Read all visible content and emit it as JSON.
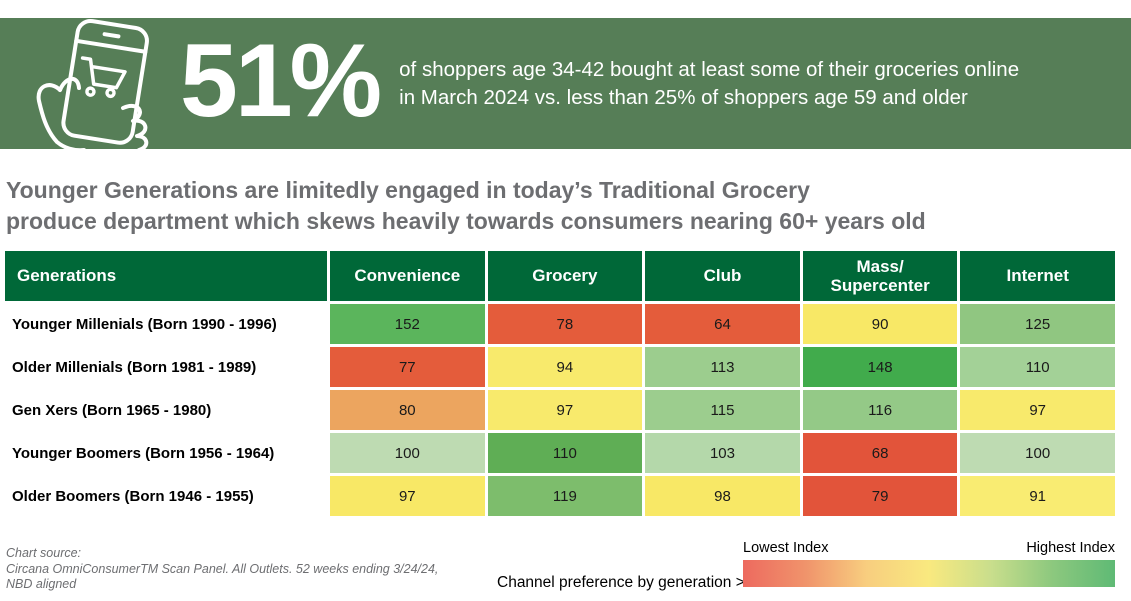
{
  "banner": {
    "bg_color": "#567e57",
    "stat_value": "51%",
    "description_line1": "of shoppers age 34-42 bought at least some of their groceries online",
    "description_line2": "in March 2024 vs. less than 25% of shoppers age 59 and older",
    "icon": "hand-holding-phone-shopping-cart-icon"
  },
  "headline": {
    "text": "Younger Generations are limitedly engaged in today’s Traditional Grocery\nproduce department which skews heavily towards consumers nearing 60+ years old"
  },
  "chart_data": {
    "type": "heatmap",
    "title": "Channel preference by generation",
    "header_bg": "#006838",
    "columns": [
      "Generations",
      "Convenience",
      "Grocery",
      "Club",
      "Mass/\nSupercenter",
      "Internet"
    ],
    "categories": [
      "Convenience",
      "Grocery",
      "Club",
      "Mass/Supercenter",
      "Internet"
    ],
    "rows": [
      {
        "label": "Younger Millenials (Born 1990 - 1996)",
        "values": [
          152,
          78,
          64,
          90,
          125
        ],
        "colors": [
          "#5bb55c",
          "#e45c3b",
          "#e45c3b",
          "#f8e866",
          "#90c681"
        ]
      },
      {
        "label": "Older Millenials (Born 1981 - 1989)",
        "values": [
          77,
          94,
          113,
          148,
          110
        ],
        "colors": [
          "#e45c3b",
          "#f8ea6c",
          "#9ccd8e",
          "#41ab4c",
          "#a3d197"
        ]
      },
      {
        "label": "Gen Xers (Born 1965 - 1980)",
        "values": [
          80,
          97,
          115,
          116,
          97
        ],
        "colors": [
          "#eca55f",
          "#f8ea6c",
          "#9ccd8e",
          "#94c987",
          "#f8ea6c"
        ]
      },
      {
        "label": "Younger Boomers (Born 1956 - 1964)",
        "values": [
          100,
          110,
          103,
          68,
          100
        ],
        "colors": [
          "#bedbb2",
          "#5fae55",
          "#b4d8aa",
          "#e2543a",
          "#bedbb2"
        ]
      },
      {
        "label": "Older Boomers (Born 1946 - 1955)",
        "values": [
          97,
          119,
          98,
          79,
          91
        ],
        "colors": [
          "#f8e866",
          "#7dbd6c",
          "#f8e866",
          "#e2543a",
          "#f9ec72"
        ]
      }
    ],
    "legend": {
      "low_label": "Lowest Index",
      "high_label": "Highest Index",
      "gradient": [
        "#ed6a5f",
        "#f0936b",
        "#f8ce7f",
        "#f9e97f",
        "#c9de8c",
        "#8cc87e",
        "#5fba75"
      ]
    },
    "caption": "Channel preference by generation >"
  },
  "footer": {
    "source_label": "Chart source:",
    "source_line1": "Circana OmniConsumerTM Scan Panel. All Outlets. 52 weeks ending 3/24/24,",
    "source_line2": "NBD aligned"
  }
}
